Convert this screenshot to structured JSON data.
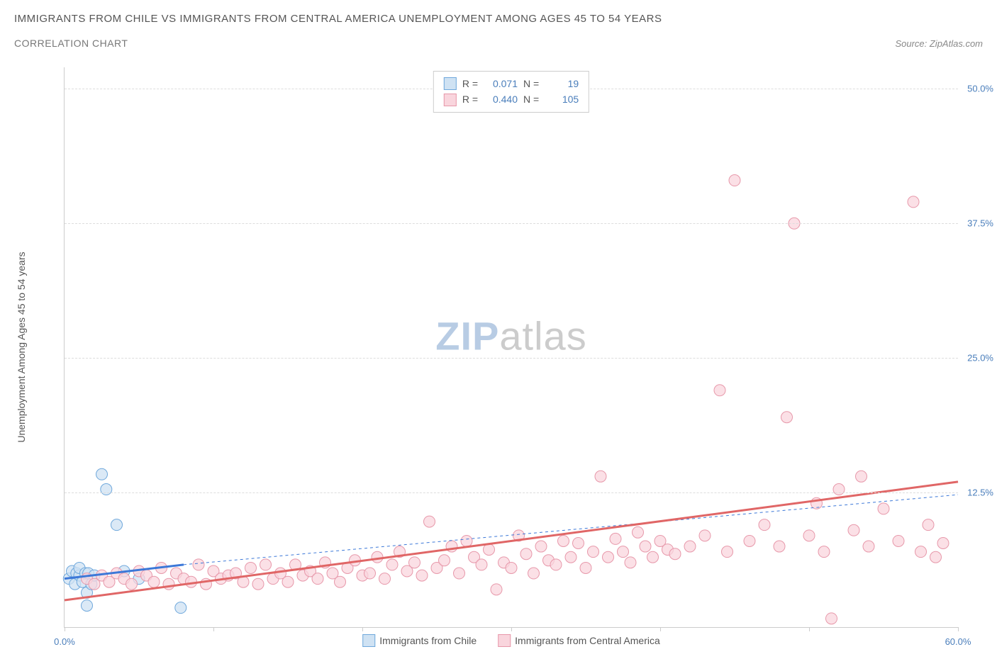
{
  "title": "IMMIGRANTS FROM CHILE VS IMMIGRANTS FROM CENTRAL AMERICA UNEMPLOYMENT AMONG AGES 45 TO 54 YEARS",
  "subtitle": "CORRELATION CHART",
  "source": "Source: ZipAtlas.com",
  "watermark_a": "ZIP",
  "watermark_b": "atlas",
  "ylabel": "Unemployment Among Ages 45 to 54 years",
  "chart": {
    "type": "scatter",
    "xlim": [
      0,
      60
    ],
    "ylim": [
      0,
      52
    ],
    "xtick_positions": [
      0,
      10,
      20,
      30,
      40,
      50,
      60
    ],
    "xtick_labels": {
      "0": "0.0%",
      "60": "60.0%"
    },
    "ytick_positions": [
      12.5,
      25.0,
      37.5,
      50.0
    ],
    "ytick_labels": [
      "12.5%",
      "25.0%",
      "37.5%",
      "50.0%"
    ],
    "grid_positions": [
      12.5,
      25.0,
      37.5,
      50.0
    ],
    "background_color": "#ffffff",
    "grid_color": "#dddddd",
    "axis_color": "#cccccc",
    "tick_label_color": "#4a7ebb",
    "series": [
      {
        "name": "Immigrants from Chile",
        "color_fill": "#cfe2f3",
        "color_stroke": "#6fa8dc",
        "swatch_fill": "#cfe2f3",
        "swatch_border": "#6fa8dc",
        "R": "0.071",
        "N": "19",
        "marker_radius": 8,
        "trend": {
          "x1": 0,
          "y1": 4.5,
          "x2": 8,
          "y2": 5.8,
          "color": "#3c78d8",
          "width": 3,
          "dash": "none"
        },
        "trend_ext": {
          "x1": 8,
          "y1": 5.8,
          "x2": 60,
          "y2": 12.3,
          "color": "#3c78d8",
          "width": 1,
          "dash": "4,4"
        },
        "points": [
          [
            0.3,
            4.5
          ],
          [
            0.5,
            5.2
          ],
          [
            0.7,
            4.0
          ],
          [
            0.8,
            5.0
          ],
          [
            1.0,
            4.8
          ],
          [
            1.0,
            5.5
          ],
          [
            1.2,
            4.2
          ],
          [
            1.4,
            5.0
          ],
          [
            1.5,
            3.2
          ],
          [
            1.5,
            2.0
          ],
          [
            1.6,
            5.0
          ],
          [
            1.8,
            4.0
          ],
          [
            2.0,
            4.8
          ],
          [
            2.5,
            14.2
          ],
          [
            2.8,
            12.8
          ],
          [
            3.5,
            9.5
          ],
          [
            4.0,
            5.2
          ],
          [
            5.0,
            4.5
          ],
          [
            7.8,
            1.8
          ]
        ]
      },
      {
        "name": "Immigrants from Central America",
        "color_fill": "#f9d5dd",
        "color_stroke": "#e798aa",
        "swatch_fill": "#f9d5dd",
        "swatch_border": "#e798aa",
        "R": "0.440",
        "N": "105",
        "marker_radius": 8,
        "trend": {
          "x1": 0,
          "y1": 2.5,
          "x2": 60,
          "y2": 13.5,
          "color": "#e06666",
          "width": 3,
          "dash": "none"
        },
        "points": [
          [
            1.5,
            4.5
          ],
          [
            2.0,
            4.0
          ],
          [
            2.5,
            4.8
          ],
          [
            3.0,
            4.2
          ],
          [
            3.5,
            5.0
          ],
          [
            4.0,
            4.5
          ],
          [
            4.5,
            4.0
          ],
          [
            5.0,
            5.2
          ],
          [
            5.5,
            4.8
          ],
          [
            6.0,
            4.2
          ],
          [
            6.5,
            5.5
          ],
          [
            7.0,
            4.0
          ],
          [
            7.5,
            5.0
          ],
          [
            8.0,
            4.5
          ],
          [
            8.5,
            4.2
          ],
          [
            9.0,
            5.8
          ],
          [
            9.5,
            4.0
          ],
          [
            10.0,
            5.2
          ],
          [
            10.5,
            4.5
          ],
          [
            11.0,
            4.8
          ],
          [
            11.5,
            5.0
          ],
          [
            12.0,
            4.2
          ],
          [
            12.5,
            5.5
          ],
          [
            13.0,
            4.0
          ],
          [
            13.5,
            5.8
          ],
          [
            14.0,
            4.5
          ],
          [
            14.5,
            5.0
          ],
          [
            15.0,
            4.2
          ],
          [
            15.5,
            5.8
          ],
          [
            16.0,
            4.8
          ],
          [
            16.5,
            5.2
          ],
          [
            17.0,
            4.5
          ],
          [
            17.5,
            6.0
          ],
          [
            18.0,
            5.0
          ],
          [
            18.5,
            4.2
          ],
          [
            19.0,
            5.5
          ],
          [
            19.5,
            6.2
          ],
          [
            20.0,
            4.8
          ],
          [
            20.5,
            5.0
          ],
          [
            21.0,
            6.5
          ],
          [
            21.5,
            4.5
          ],
          [
            22.0,
            5.8
          ],
          [
            22.5,
            7.0
          ],
          [
            23.0,
            5.2
          ],
          [
            23.5,
            6.0
          ],
          [
            24.0,
            4.8
          ],
          [
            24.5,
            9.8
          ],
          [
            25.0,
            5.5
          ],
          [
            25.5,
            6.2
          ],
          [
            26.0,
            7.5
          ],
          [
            26.5,
            5.0
          ],
          [
            27.0,
            8.0
          ],
          [
            27.5,
            6.5
          ],
          [
            28.0,
            5.8
          ],
          [
            28.5,
            7.2
          ],
          [
            29.0,
            3.5
          ],
          [
            29.5,
            6.0
          ],
          [
            30.0,
            5.5
          ],
          [
            30.5,
            8.5
          ],
          [
            31.0,
            6.8
          ],
          [
            31.5,
            5.0
          ],
          [
            32.0,
            7.5
          ],
          [
            32.5,
            6.2
          ],
          [
            33.0,
            5.8
          ],
          [
            33.5,
            8.0
          ],
          [
            34.0,
            6.5
          ],
          [
            34.5,
            7.8
          ],
          [
            35.0,
            5.5
          ],
          [
            35.5,
            7.0
          ],
          [
            36.0,
            14.0
          ],
          [
            36.5,
            6.5
          ],
          [
            37.0,
            8.2
          ],
          [
            37.5,
            7.0
          ],
          [
            38.0,
            6.0
          ],
          [
            38.5,
            8.8
          ],
          [
            39.0,
            7.5
          ],
          [
            39.5,
            6.5
          ],
          [
            40.0,
            8.0
          ],
          [
            40.5,
            7.2
          ],
          [
            41.0,
            6.8
          ],
          [
            42.0,
            7.5
          ],
          [
            43.0,
            8.5
          ],
          [
            44.0,
            22.0
          ],
          [
            44.5,
            7.0
          ],
          [
            45.0,
            41.5
          ],
          [
            46.0,
            8.0
          ],
          [
            47.0,
            9.5
          ],
          [
            48.0,
            7.5
          ],
          [
            48.5,
            19.5
          ],
          [
            49.0,
            37.5
          ],
          [
            50.0,
            8.5
          ],
          [
            50.5,
            11.5
          ],
          [
            51.0,
            7.0
          ],
          [
            51.5,
            0.8
          ],
          [
            52.0,
            12.8
          ],
          [
            53.0,
            9.0
          ],
          [
            53.5,
            14.0
          ],
          [
            54.0,
            7.5
          ],
          [
            55.0,
            11.0
          ],
          [
            56.0,
            8.0
          ],
          [
            57.0,
            39.5
          ],
          [
            57.5,
            7.0
          ],
          [
            58.0,
            9.5
          ],
          [
            58.5,
            6.5
          ],
          [
            59.0,
            7.8
          ]
        ]
      }
    ],
    "legend_top": {
      "R_label": "R =",
      "N_label": "N ="
    },
    "legend_bottom": [
      {
        "swatch_fill": "#cfe2f3",
        "swatch_border": "#6fa8dc",
        "label": "Immigrants from Chile"
      },
      {
        "swatch_fill": "#f9d5dd",
        "swatch_border": "#e798aa",
        "label": "Immigrants from Central America"
      }
    ]
  }
}
